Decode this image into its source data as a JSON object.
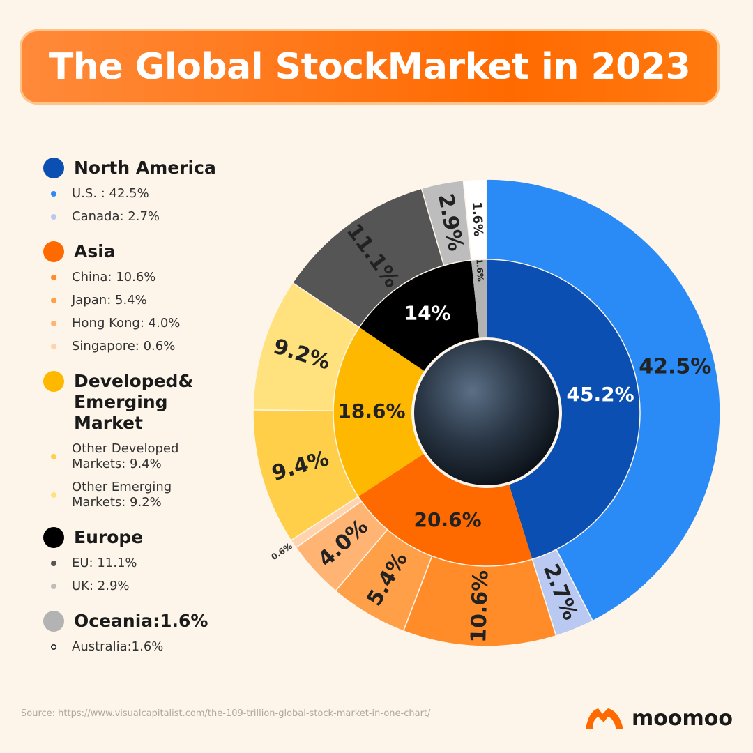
{
  "chart_data": {
    "type": "donut",
    "title": "The Global StockMarket in 2023",
    "rings": [
      {
        "values": [
          45.2,
          20.6,
          18.6,
          14,
          1.6
        ],
        "value_labels": [
          "45.2%",
          "20.6%",
          "18.6%",
          "14%",
          "1.6%"
        ],
        "colors": [
          "#0b4fb3",
          "#ff6a00",
          "#ffb800",
          "#000000",
          "#b3b3b3"
        ]
      },
      {
        "values": [
          42.5,
          2.7,
          10.6,
          5.4,
          4.0,
          0.6,
          9.4,
          9.2,
          11.1,
          2.9,
          1.6
        ],
        "value_labels": [
          "42.5%",
          "2.7%",
          "10.6%",
          "5.4%",
          "4.0%",
          "0.6%",
          "9.4%",
          "9.2%",
          "11.1%",
          "2.9%",
          "1.6%"
        ],
        "colors": [
          "#2a8bf6",
          "#b9c9f2",
          "#ff8c28",
          "#ff9f48",
          "#ffb474",
          "#ffd3ad",
          "#ffcf4a",
          "#ffe27e",
          "#555555",
          "#bdbdbd",
          "#ffffff"
        ]
      }
    ],
    "legend": [
      {
        "title": "North America",
        "items": [
          "U.S. : 42.5%",
          "Canada: 2.7%"
        ]
      },
      {
        "title": "Asia",
        "items": [
          "China: 10.6%",
          "Japan: 5.4%",
          "Hong Kong: 4.0%",
          "Singapore: 0.6%"
        ]
      },
      {
        "title": "Developed& Emerging Market",
        "items": [
          "Other Developed Markets: 9.4%",
          "Other Emerging Markets: 9.2%"
        ]
      },
      {
        "title": "Europe",
        "items": [
          "EU: 11.1%",
          "UK: 2.9%"
        ]
      },
      {
        "title": "Oceania:1.6%",
        "items": [
          "Australia:1.6%"
        ]
      }
    ],
    "source": "Source: https://www.visualcapitalist.com/the-109-trillion-global-stock-market-in-one-chart/",
    "brand": "moomoo"
  }
}
